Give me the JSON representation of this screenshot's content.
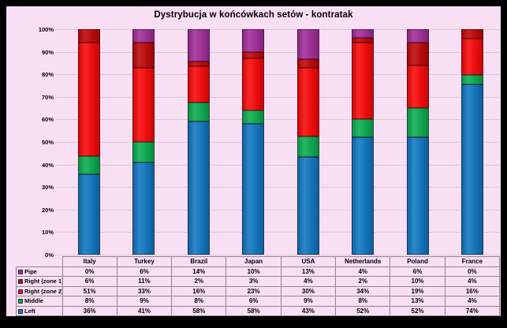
{
  "title": "Dystrybucja w końcówkach setów - kontratak",
  "colors": {
    "frame": "#000000",
    "background": "#F9DFF4",
    "gridline": "#D8CBD6",
    "table_border": "#8F8698",
    "text": "#000000"
  },
  "chart_data": {
    "type": "bar",
    "subtype": "stacked-100",
    "title": "Dystrybucja w końcówkach setów - kontratak",
    "categories": [
      "Italy",
      "Turkey",
      "Brazil",
      "Japan",
      "USA",
      "Netherlands",
      "Poland",
      "France"
    ],
    "series": [
      {
        "name": "Pipe",
        "color": "#A3309B",
        "values": [
          0,
          6,
          14,
          10,
          13,
          4,
          6,
          0
        ]
      },
      {
        "name": "Right (zone 1)",
        "color": "#C00A0A",
        "values": [
          6,
          11,
          2,
          3,
          4,
          2,
          10,
          4
        ]
      },
      {
        "name": "Right (zone 2)",
        "color": "#F80C0C",
        "values": [
          51,
          33,
          16,
          23,
          30,
          34,
          19,
          16
        ]
      },
      {
        "name": "Middle",
        "color": "#0EAE53",
        "values": [
          8,
          9,
          8,
          6,
          9,
          8,
          13,
          4
        ]
      },
      {
        "name": "Left",
        "color": "#1379C2",
        "values": [
          36,
          41,
          58,
          58,
          43,
          52,
          52,
          74
        ]
      }
    ],
    "y_ticks": [
      "100%",
      "90%",
      "80%",
      "70%",
      "60%",
      "50%",
      "40%",
      "30%",
      "20%",
      "10%",
      "0%"
    ],
    "ylim": [
      0,
      100
    ],
    "value_suffix": "%",
    "grid": true,
    "legend_position": "table-left",
    "xlabel": "",
    "ylabel": ""
  }
}
